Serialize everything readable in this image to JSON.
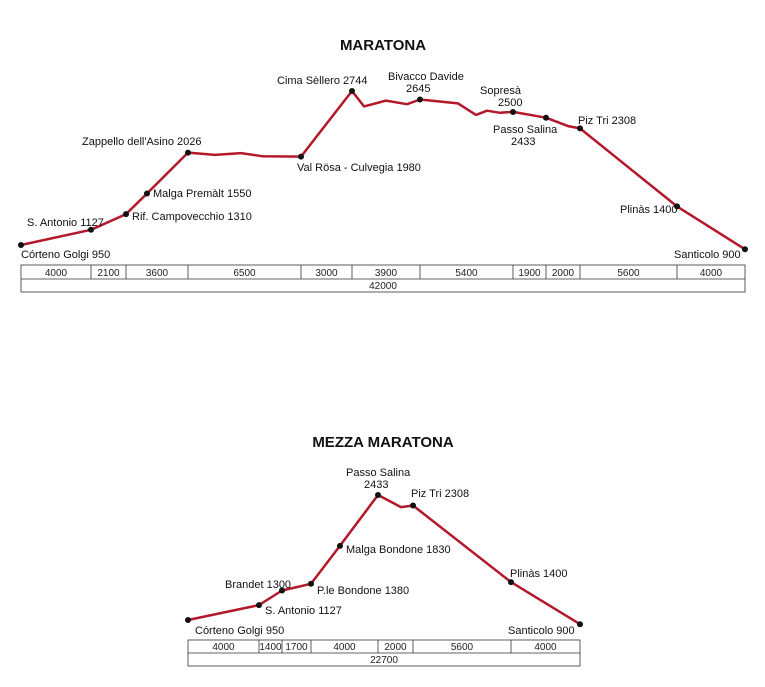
{
  "chart_data": [
    {
      "type": "line",
      "title": "MARATONA",
      "unit_profile": "elevation",
      "points": [
        {
          "label": "Córteno Golgi 950",
          "elev": 950
        },
        {
          "label": "S. Antonio 1127",
          "elev": 1127
        },
        {
          "label": "Rif. Campovecchio 1310",
          "elev": 1310
        },
        {
          "label": "Malga Premàlt 1550",
          "elev": 1550
        },
        {
          "label": "Zappello dell'Asino 2026",
          "elev": 2026
        },
        {
          "label": "",
          "elev": 2000
        },
        {
          "label": "",
          "elev": 2020
        },
        {
          "label": "",
          "elev": 1985
        },
        {
          "label": "Val Rösa - Culvegia 1980",
          "elev": 1980
        },
        {
          "label": "Cima Sèllero 2744",
          "elev": 2744
        },
        {
          "label": "",
          "elev": 2565
        },
        {
          "label": "",
          "elev": 2632
        },
        {
          "label": "",
          "elev": 2590
        },
        {
          "label": "Bivacco Davide 2645",
          "elev": 2645
        },
        {
          "label": "",
          "elev": 2600
        },
        {
          "label": "",
          "elev": 2465
        },
        {
          "label": "",
          "elev": 2515
        },
        {
          "label": "",
          "elev": 2490
        },
        {
          "label": "Sopresà 2500",
          "elev": 2500
        },
        {
          "label": "Passo Salina 2433",
          "elev": 2433
        },
        {
          "label": "",
          "elev": 2335
        },
        {
          "label": "Piz Tri 2308",
          "elev": 2308
        },
        {
          "label": "Plinàs 1400",
          "elev": 1400
        },
        {
          "label": "Santicolo 900",
          "elev": 900
        }
      ],
      "segments": [
        "4000",
        "2100",
        "3600",
        "6500",
        "3000",
        "3900",
        "5400",
        "1900",
        "2000",
        "5600",
        "4000"
      ],
      "total": "42000"
    },
    {
      "type": "line",
      "title": "MEZZA MARATONA",
      "points": [
        {
          "label": "Córteno Golgi 950",
          "elev": 950
        },
        {
          "label": "S. Antonio 1127",
          "elev": 1127
        },
        {
          "label": "Brandet 1300",
          "elev": 1300
        },
        {
          "label": "P.le Bondone 1380",
          "elev": 1380
        },
        {
          "label": "Malga Bondone 1830",
          "elev": 1830
        },
        {
          "label": "Passo Salina 2433",
          "elev": 2433
        },
        {
          "label": "",
          "elev": 2290
        },
        {
          "label": "Piz Tri 2308",
          "elev": 2308
        },
        {
          "label": "Plinàs 1400",
          "elev": 1400
        },
        {
          "label": "Santicolo 900",
          "elev": 900
        }
      ],
      "segments": [
        "4000",
        "1400",
        "1700",
        "4000",
        "2000",
        "5600",
        "4000"
      ],
      "total": "22700"
    }
  ]
}
